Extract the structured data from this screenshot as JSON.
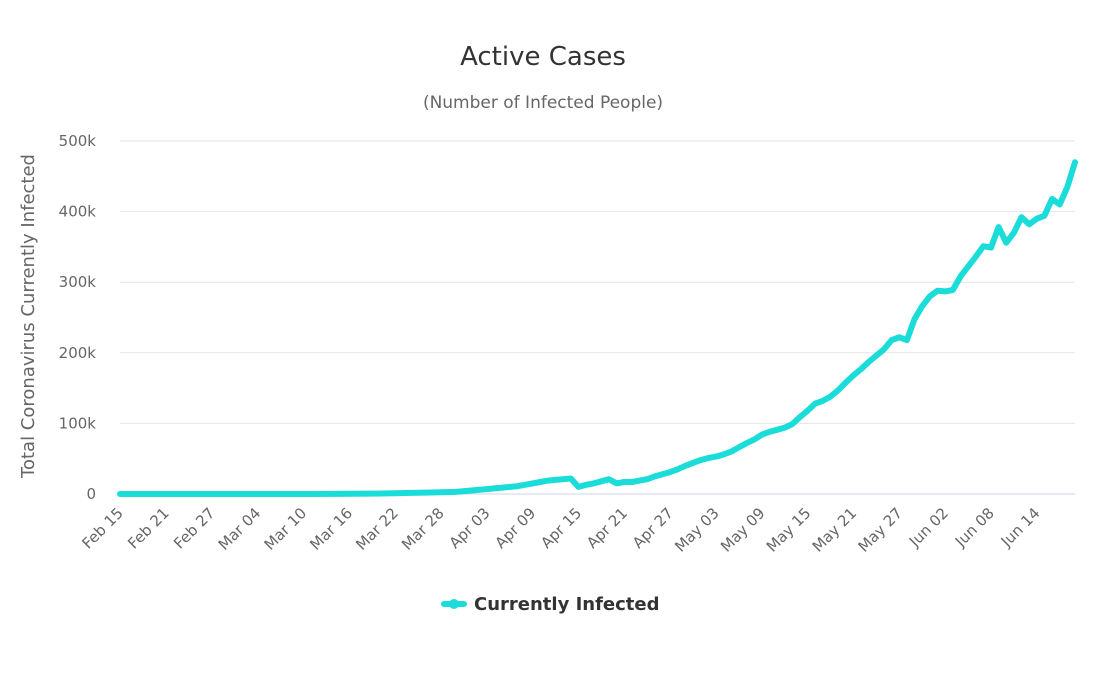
{
  "chart_data": {
    "type": "line",
    "title": "Active Cases",
    "subtitle": "(Number of Infected People)",
    "ylabel": "Total Coronavirus Currently Infected",
    "xlabel": "",
    "ylim": [
      0,
      500000
    ],
    "yticks": [
      {
        "value": 0,
        "label": "0"
      },
      {
        "value": 100000,
        "label": "100k"
      },
      {
        "value": 200000,
        "label": "200k"
      },
      {
        "value": 300000,
        "label": "300k"
      },
      {
        "value": 400000,
        "label": "400k"
      },
      {
        "value": 500000,
        "label": "500k"
      }
    ],
    "xticks": [
      {
        "day": 0,
        "label": "Feb 15"
      },
      {
        "day": 6,
        "label": "Feb 21"
      },
      {
        "day": 12,
        "label": "Feb 27"
      },
      {
        "day": 18,
        "label": "Mar 04"
      },
      {
        "day": 24,
        "label": "Mar 10"
      },
      {
        "day": 30,
        "label": "Mar 16"
      },
      {
        "day": 36,
        "label": "Mar 22"
      },
      {
        "day": 42,
        "label": "Mar 28"
      },
      {
        "day": 48,
        "label": "Apr 03"
      },
      {
        "day": 54,
        "label": "Apr 09"
      },
      {
        "day": 60,
        "label": "Apr 15"
      },
      {
        "day": 66,
        "label": "Apr 21"
      },
      {
        "day": 72,
        "label": "Apr 27"
      },
      {
        "day": 78,
        "label": "May 03"
      },
      {
        "day": 84,
        "label": "May 09"
      },
      {
        "day": 90,
        "label": "May 15"
      },
      {
        "day": 96,
        "label": "May 21"
      },
      {
        "day": 102,
        "label": "May 27"
      },
      {
        "day": 108,
        "label": "Jun 02"
      },
      {
        "day": 114,
        "label": "Jun 08"
      },
      {
        "day": 120,
        "label": "Jun 14"
      }
    ],
    "xdomain": [
      0,
      125
    ],
    "legend": "bottom-center",
    "series": [
      {
        "name": "Currently Infected",
        "color": "#1adcd8",
        "points": [
          [
            0,
            0
          ],
          [
            5,
            0
          ],
          [
            10,
            0
          ],
          [
            15,
            0
          ],
          [
            20,
            0
          ],
          [
            25,
            0
          ],
          [
            28,
            100
          ],
          [
            30,
            300
          ],
          [
            33,
            600
          ],
          [
            36,
            1000
          ],
          [
            38,
            1500
          ],
          [
            40,
            2000
          ],
          [
            42,
            2500
          ],
          [
            44,
            3000
          ],
          [
            46,
            5000
          ],
          [
            48,
            7000
          ],
          [
            50,
            9000
          ],
          [
            52,
            11000
          ],
          [
            54,
            15000
          ],
          [
            55,
            17000
          ],
          [
            56,
            19000
          ],
          [
            57,
            20000
          ],
          [
            58,
            21000
          ],
          [
            59,
            22000
          ],
          [
            60,
            10000
          ],
          [
            61,
            13000
          ],
          [
            62,
            15000
          ],
          [
            63,
            18000
          ],
          [
            64,
            21000
          ],
          [
            65,
            15000
          ],
          [
            66,
            17000
          ],
          [
            67,
            17000
          ],
          [
            68,
            19000
          ],
          [
            69,
            21000
          ],
          [
            70,
            25000
          ],
          [
            71,
            28000
          ],
          [
            72,
            31000
          ],
          [
            73,
            35000
          ],
          [
            74,
            40000
          ],
          [
            75,
            44000
          ],
          [
            76,
            48000
          ],
          [
            77,
            51000
          ],
          [
            78,
            53000
          ],
          [
            79,
            56000
          ],
          [
            80,
            60000
          ],
          [
            81,
            66000
          ],
          [
            82,
            72000
          ],
          [
            83,
            77000
          ],
          [
            84,
            84000
          ],
          [
            85,
            88000
          ],
          [
            86,
            91000
          ],
          [
            87,
            94000
          ],
          [
            88,
            99000
          ],
          [
            89,
            109000
          ],
          [
            90,
            118000
          ],
          [
            91,
            128000
          ],
          [
            92,
            132000
          ],
          [
            93,
            138000
          ],
          [
            94,
            147000
          ],
          [
            95,
            158000
          ],
          [
            96,
            168000
          ],
          [
            97,
            177000
          ],
          [
            98,
            187000
          ],
          [
            99,
            196000
          ],
          [
            100,
            205000
          ],
          [
            101,
            218000
          ],
          [
            102,
            222000
          ],
          [
            103,
            218000
          ],
          [
            104,
            248000
          ],
          [
            105,
            266000
          ],
          [
            106,
            280000
          ],
          [
            107,
            288000
          ],
          [
            108,
            287000
          ],
          [
            109,
            289000
          ],
          [
            110,
            308000
          ],
          [
            111,
            322000
          ],
          [
            112,
            336000
          ],
          [
            113,
            351000
          ],
          [
            114,
            349000
          ],
          [
            115,
            378000
          ],
          [
            116,
            356000
          ],
          [
            117,
            370000
          ],
          [
            118,
            392000
          ],
          [
            119,
            382000
          ],
          [
            120,
            390000
          ],
          [
            121,
            394000
          ],
          [
            122,
            418000
          ],
          [
            123,
            410000
          ],
          [
            124,
            435000
          ],
          [
            125,
            470000
          ]
        ]
      }
    ]
  }
}
